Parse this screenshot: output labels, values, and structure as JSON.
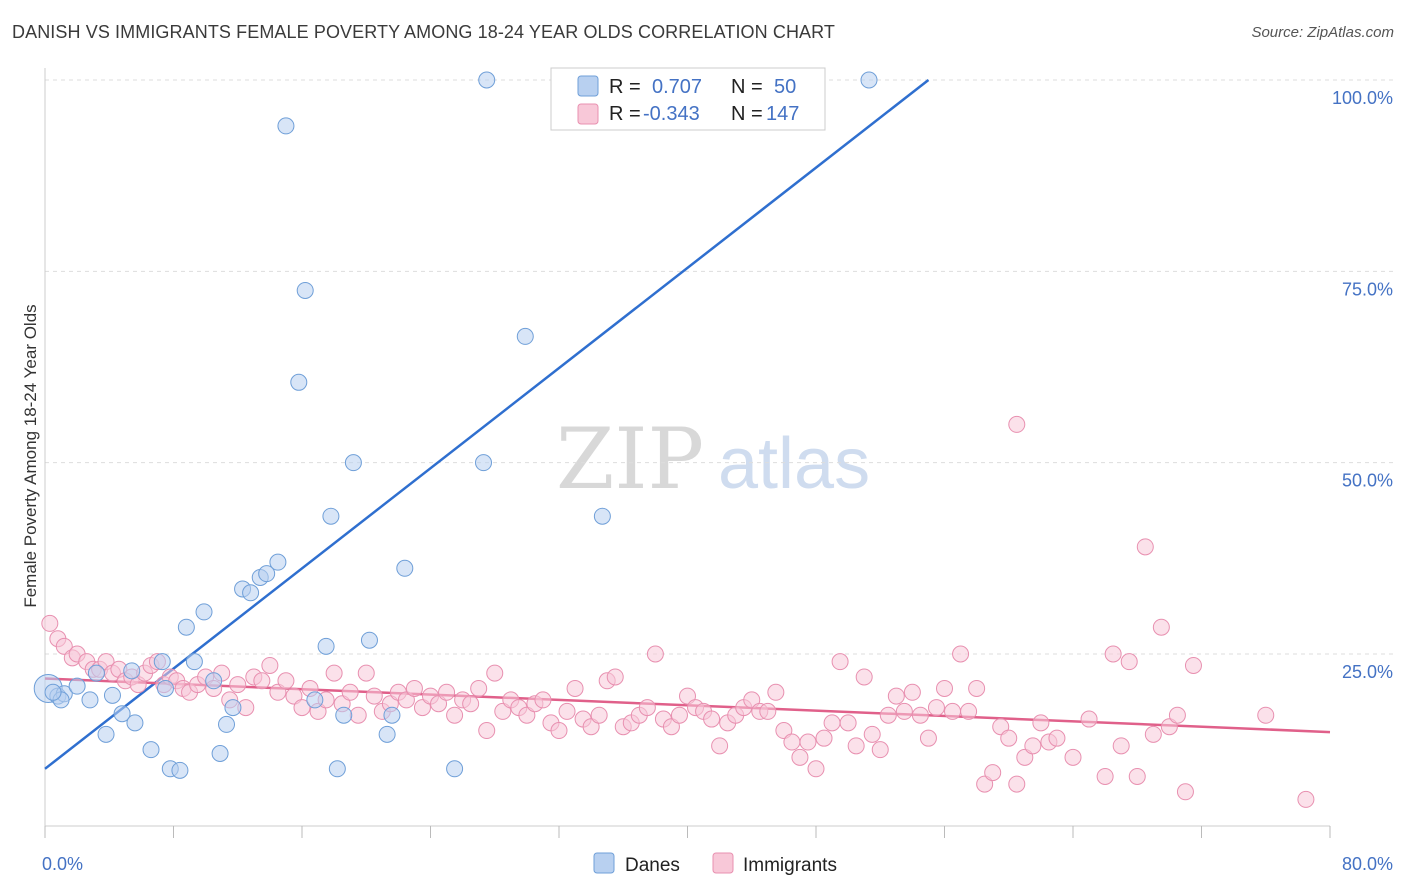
{
  "title": "DANISH VS IMMIGRANTS FEMALE POVERTY AMONG 18-24 YEAR OLDS CORRELATION CHART",
  "source": "Source: ZipAtlas.com",
  "colors": {
    "danes_fill": "#b8d0f0",
    "danes_stroke": "#6f9fd8",
    "danes_line": "#2f6fcf",
    "immigrants_fill": "#f8c8d8",
    "immigrants_stroke": "#e890b0",
    "immigrants_line": "#e0608a",
    "axis_text": "#4472c4",
    "grid": "#dddddd"
  },
  "legend_top": {
    "danes": {
      "r_label": "R =",
      "r_value": "0.707",
      "n_label": "N =",
      "n_value": "50"
    },
    "immigrants": {
      "r_label": "R =",
      "r_value": "-0.343",
      "n_label": "N =",
      "n_value": "147"
    }
  },
  "legend_bottom": {
    "danes": "Danes",
    "immigrants": "Immigrants"
  },
  "watermark": {
    "zip": "ZIP",
    "atlas": "atlas"
  },
  "chart_data": {
    "type": "scatter",
    "title": "DANISH VS IMMIGRANTS FEMALE POVERTY AMONG 18-24 YEAR OLDS CORRELATION CHART",
    "xlabel": "",
    "ylabel": "Female Poverty Among 18-24 Year Olds",
    "xlim": [
      0,
      80
    ],
    "ylim": [
      0,
      105
    ],
    "x_tick_labels": [
      "0.0%",
      "80.0%"
    ],
    "y_ticks": [
      25,
      50,
      75,
      100
    ],
    "y_tick_labels": [
      "25.0%",
      "50.0%",
      "75.0%",
      "100.0%"
    ],
    "grid": "horizontal dashed",
    "legend_position": "top-center",
    "series": [
      {
        "name": "Danes",
        "r": 0.707,
        "n": 50,
        "trend": {
          "x": [
            0,
            55
          ],
          "y": [
            10,
            100
          ]
        },
        "points": [
          [
            0.2,
            20.5
          ],
          [
            0.8,
            19.5
          ],
          [
            1.2,
            19.8
          ],
          [
            2.0,
            20.8
          ],
          [
            2.8,
            19
          ],
          [
            3.2,
            22.5
          ],
          [
            3.8,
            14.5
          ],
          [
            4.2,
            19.6
          ],
          [
            4.8,
            17.2
          ],
          [
            5.6,
            16
          ],
          [
            6.6,
            12.5
          ],
          [
            7.5,
            20.5
          ],
          [
            5.4,
            22.8
          ],
          [
            7.3,
            24
          ],
          [
            7.8,
            10
          ],
          [
            8.4,
            9.8
          ],
          [
            8.8,
            28.5
          ],
          [
            9.3,
            24
          ],
          [
            9.9,
            30.5
          ],
          [
            10.5,
            21.5
          ],
          [
            10.9,
            12
          ],
          [
            11.3,
            15.8
          ],
          [
            11.7,
            18
          ],
          [
            12.3,
            33.5
          ],
          [
            12.8,
            33
          ],
          [
            13.4,
            35
          ],
          [
            13.8,
            35.5
          ],
          [
            14.5,
            37
          ],
          [
            15,
            94
          ],
          [
            15.8,
            60.5
          ],
          [
            16.2,
            72.5
          ],
          [
            16.8,
            19
          ],
          [
            17.5,
            26
          ],
          [
            17.8,
            43
          ],
          [
            18.2,
            10
          ],
          [
            18.6,
            17
          ],
          [
            19.2,
            50
          ],
          [
            20.2,
            26.8
          ],
          [
            21.3,
            14.5
          ],
          [
            21.6,
            17
          ],
          [
            22.4,
            36.2
          ],
          [
            25.5,
            10
          ],
          [
            27.3,
            50
          ],
          [
            27.5,
            100
          ],
          [
            29.9,
            66.5
          ],
          [
            34.7,
            43
          ],
          [
            34,
            100
          ],
          [
            51.3,
            100
          ],
          [
            1.0,
            19.0
          ],
          [
            0.5,
            20.0
          ]
        ]
      },
      {
        "name": "Immigrants",
        "r": -0.343,
        "n": 147,
        "trend": {
          "x": [
            0,
            80
          ],
          "y": [
            21.8,
            14.8
          ]
        },
        "points": [
          [
            0.3,
            29
          ],
          [
            0.8,
            27
          ],
          [
            1.2,
            26
          ],
          [
            1.7,
            24.5
          ],
          [
            2.0,
            25
          ],
          [
            2.6,
            24
          ],
          [
            3.0,
            23
          ],
          [
            3.4,
            23
          ],
          [
            3.8,
            24
          ],
          [
            4.2,
            22.5
          ],
          [
            4.6,
            23
          ],
          [
            5.0,
            21.5
          ],
          [
            5.4,
            22
          ],
          [
            5.8,
            21
          ],
          [
            6.2,
            22.5
          ],
          [
            6.6,
            23.5
          ],
          [
            7.0,
            24
          ],
          [
            7.4,
            21
          ],
          [
            7.8,
            22
          ],
          [
            8.2,
            21.5
          ],
          [
            8.6,
            20.5
          ],
          [
            9.0,
            20
          ],
          [
            9.5,
            21
          ],
          [
            10.0,
            22
          ],
          [
            10.5,
            20.5
          ],
          [
            11.0,
            22.5
          ],
          [
            11.5,
            19
          ],
          [
            12.0,
            21
          ],
          [
            12.5,
            18
          ],
          [
            13.0,
            22
          ],
          [
            13.5,
            21.5
          ],
          [
            14.0,
            23.5
          ],
          [
            14.5,
            20
          ],
          [
            15.0,
            21.5
          ],
          [
            15.5,
            19.5
          ],
          [
            16.0,
            18
          ],
          [
            16.5,
            20.5
          ],
          [
            17.0,
            17.5
          ],
          [
            17.5,
            19
          ],
          [
            18.0,
            22.5
          ],
          [
            18.5,
            18.5
          ],
          [
            19.0,
            20
          ],
          [
            19.5,
            17
          ],
          [
            20.0,
            22.5
          ],
          [
            20.5,
            19.5
          ],
          [
            21.0,
            17.5
          ],
          [
            21.5,
            18.5
          ],
          [
            22.0,
            20
          ],
          [
            22.5,
            19
          ],
          [
            23.0,
            20.5
          ],
          [
            23.5,
            18
          ],
          [
            24.0,
            19.5
          ],
          [
            24.5,
            18.5
          ],
          [
            25.0,
            20
          ],
          [
            25.5,
            17
          ],
          [
            26.0,
            19
          ],
          [
            26.5,
            18.5
          ],
          [
            27.0,
            20.5
          ],
          [
            27.5,
            15
          ],
          [
            28.0,
            22.5
          ],
          [
            28.5,
            17.5
          ],
          [
            29.0,
            19
          ],
          [
            29.5,
            18
          ],
          [
            30.0,
            17
          ],
          [
            30.5,
            18.5
          ],
          [
            31.0,
            19
          ],
          [
            31.5,
            16
          ],
          [
            32.0,
            15
          ],
          [
            32.5,
            17.5
          ],
          [
            33.0,
            20.5
          ],
          [
            33.5,
            16.5
          ],
          [
            34.0,
            15.5
          ],
          [
            34.5,
            17
          ],
          [
            35.0,
            21.5
          ],
          [
            35.5,
            22
          ],
          [
            36.0,
            15.5
          ],
          [
            36.5,
            16
          ],
          [
            37.0,
            17
          ],
          [
            37.5,
            18
          ],
          [
            38.0,
            25
          ],
          [
            38.5,
            16.5
          ],
          [
            39.0,
            15.5
          ],
          [
            39.5,
            17
          ],
          [
            40.0,
            19.5
          ],
          [
            40.5,
            18
          ],
          [
            41.0,
            17.5
          ],
          [
            41.5,
            16.5
          ],
          [
            42.0,
            13
          ],
          [
            42.5,
            16
          ],
          [
            43.0,
            17
          ],
          [
            43.5,
            18
          ],
          [
            44.0,
            19
          ],
          [
            44.5,
            17.5
          ],
          [
            45.0,
            17.5
          ],
          [
            45.5,
            20
          ],
          [
            46.0,
            15
          ],
          [
            46.5,
            13.5
          ],
          [
            47.0,
            11.5
          ],
          [
            47.5,
            13.5
          ],
          [
            48.0,
            10
          ],
          [
            48.5,
            14
          ],
          [
            49.0,
            16
          ],
          [
            49.5,
            24
          ],
          [
            50.0,
            16
          ],
          [
            50.5,
            13
          ],
          [
            51.0,
            22
          ],
          [
            51.5,
            14.5
          ],
          [
            52.0,
            12.5
          ],
          [
            52.5,
            17
          ],
          [
            53.0,
            19.5
          ],
          [
            53.5,
            17.5
          ],
          [
            54.0,
            20
          ],
          [
            54.5,
            17
          ],
          [
            55.0,
            14
          ],
          [
            55.5,
            18
          ],
          [
            56.0,
            20.5
          ],
          [
            56.5,
            17.5
          ],
          [
            57.0,
            25
          ],
          [
            57.5,
            17.5
          ],
          [
            58.0,
            20.5
          ],
          [
            58.5,
            8
          ],
          [
            59.0,
            9.5
          ],
          [
            59.5,
            15.5
          ],
          [
            60.0,
            14
          ],
          [
            60.5,
            8
          ],
          [
            61.0,
            11.5
          ],
          [
            61.5,
            13
          ],
          [
            62.0,
            16
          ],
          [
            62.5,
            13.5
          ],
          [
            63.0,
            14
          ],
          [
            64.0,
            11.5
          ],
          [
            65.0,
            16.5
          ],
          [
            66.0,
            9
          ],
          [
            66.5,
            25
          ],
          [
            67.0,
            13
          ],
          [
            67.5,
            24
          ],
          [
            68.0,
            9
          ],
          [
            68.5,
            39
          ],
          [
            69.0,
            14.5
          ],
          [
            69.5,
            28.5
          ],
          [
            70.0,
            15.5
          ],
          [
            70.5,
            17
          ],
          [
            71.0,
            7
          ],
          [
            71.5,
            23.5
          ],
          [
            78.5,
            6
          ],
          [
            60.5,
            55
          ],
          [
            76.0,
            17
          ]
        ]
      }
    ]
  }
}
